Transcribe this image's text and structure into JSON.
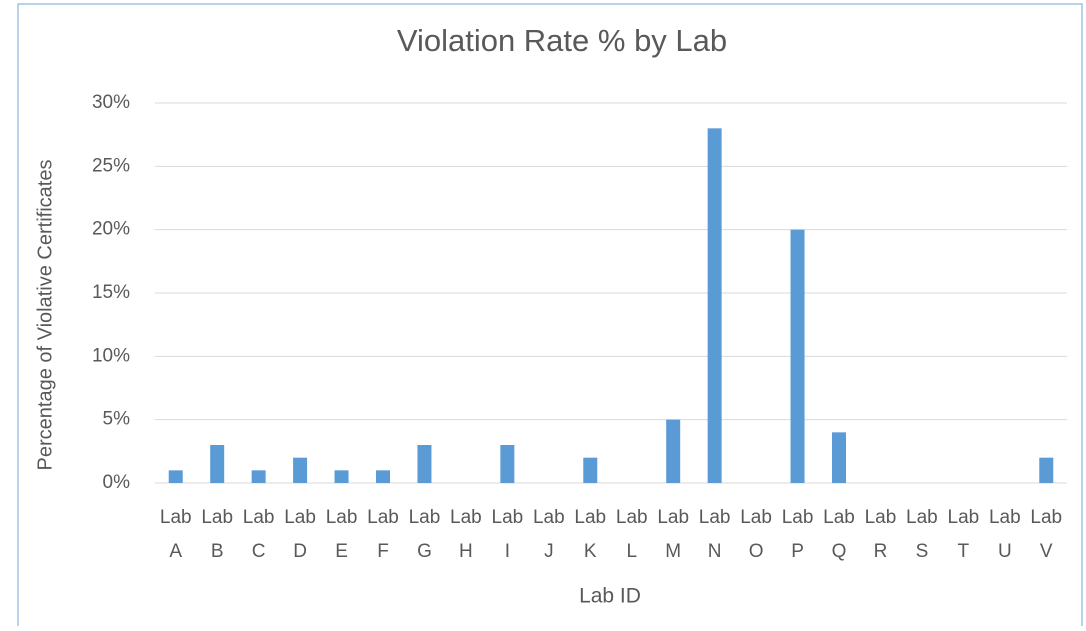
{
  "chart_data": {
    "type": "bar",
    "title": "Violation Rate % by Lab",
    "x_label": "Lab ID",
    "y_label": "Percentage of Violative Certificates",
    "categories": [
      "Lab A",
      "Lab B",
      "Lab C",
      "Lab D",
      "Lab E",
      "Lab F",
      "Lab G",
      "Lab H",
      "Lab I",
      "Lab J",
      "Lab K",
      "Lab L",
      "Lab M",
      "Lab N",
      "Lab O",
      "Lab P",
      "Lab Q",
      "Lab R",
      "Lab S",
      "Lab T",
      "Lab U",
      "Lab V"
    ],
    "values": [
      1,
      3,
      1,
      2,
      1,
      1,
      3,
      0,
      3,
      0,
      2,
      0,
      5,
      28,
      0,
      20,
      4,
      0,
      0,
      0,
      0,
      2
    ],
    "color": "#5b9bd5",
    "ylim": [
      0,
      30
    ],
    "yticks": [
      {
        "value": 0,
        "label": "0%"
      },
      {
        "value": 5,
        "label": "5%"
      },
      {
        "value": 10,
        "label": "10%"
      },
      {
        "value": 15,
        "label": "15%"
      },
      {
        "value": 20,
        "label": "20%"
      },
      {
        "value": 25,
        "label": "25%"
      },
      {
        "value": 30,
        "label": "30%"
      }
    ],
    "grid": true
  }
}
